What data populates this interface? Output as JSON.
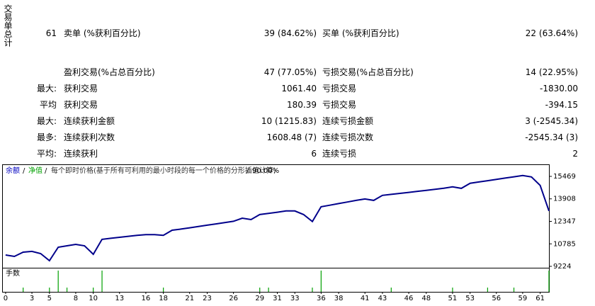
{
  "side_label": "交易单总计",
  "stats": {
    "rows": [
      {
        "prefix": "61",
        "left_label": "卖单 (%获利百分比)",
        "left_value": "39 (84.62%)",
        "right_label": "买单 (%获利百分比)",
        "right_value": "22 (63.64%)"
      },
      {
        "left_label": "盈利交易(%占总百分比)",
        "left_value": "47 (77.05%)",
        "right_label": "亏损交易(%占总百分比)",
        "right_value": "14 (22.95%)"
      },
      {
        "prefix": "最大:",
        "left_label": "获利交易",
        "left_value": "1061.40",
        "right_label": "亏损交易",
        "right_value": "-1830.00"
      },
      {
        "prefix": "平均",
        "left_label": "获利交易",
        "left_value": "180.39",
        "right_label": "亏损交易",
        "right_value": "-394.15"
      },
      {
        "prefix": "最大:",
        "left_label": "连续获利金额",
        "left_value": "10 (1215.83)",
        "right_label": "连续亏损金额",
        "right_value": "3 (-2545.34)"
      },
      {
        "prefix": "最多:",
        "left_label": "连续获利次数",
        "left_value": "1608.48 (7)",
        "right_label": "连续亏损次数",
        "right_value": "-2545.34 (3)"
      },
      {
        "prefix": "平均:",
        "left_label": "连续获利",
        "left_value": "6",
        "right_label": "连续亏损",
        "right_value": "2"
      }
    ]
  },
  "chart_data": {
    "type": "line",
    "header": {
      "balance": "余额",
      "equity": "净值",
      "separator": "/",
      "model": "每个即时价格(基于所有可利用的最小时段的每一个价格的分形插值计算)",
      "quality": "90.00%"
    },
    "x": [
      0,
      1,
      2,
      3,
      4,
      5,
      6,
      7,
      8,
      9,
      10,
      11,
      12,
      13,
      14,
      15,
      16,
      17,
      18,
      19,
      20,
      21,
      22,
      23,
      24,
      25,
      26,
      27,
      28,
      29,
      30,
      31,
      32,
      33,
      34,
      35,
      36,
      37,
      38,
      39,
      40,
      41,
      42,
      43,
      44,
      45,
      46,
      47,
      48,
      49,
      50,
      51,
      52,
      53,
      54,
      55,
      56,
      57,
      58,
      59,
      60,
      61,
      62
    ],
    "series": [
      {
        "name": "余额",
        "color": "#00008b",
        "values": [
          10010,
          9914,
          10210,
          10260,
          10110,
          9620,
          10554,
          10650,
          10750,
          10650,
          10060,
          11100,
          11170,
          11240,
          11310,
          11380,
          11420,
          11420,
          11380,
          11730,
          11810,
          11900,
          11990,
          12080,
          12170,
          12260,
          12350,
          12570,
          12470,
          12820,
          12900,
          12980,
          13070,
          13070,
          12820,
          12330,
          13360,
          13470,
          13580,
          13690,
          13800,
          13900,
          13800,
          14150,
          14220,
          14290,
          14360,
          14430,
          14500,
          14570,
          14650,
          14740,
          14640,
          14990,
          15080,
          15170,
          15260,
          15350,
          15440,
          15530,
          15430,
          14840,
          13070
        ]
      }
    ],
    "xlim": [
      -0.4,
      62
    ],
    "xticks": [
      0,
      3,
      5,
      8,
      10,
      13,
      16,
      18,
      21,
      23,
      26,
      29,
      31,
      33,
      36,
      38,
      41,
      43,
      46,
      48,
      51,
      53,
      56,
      59,
      61
    ],
    "ylim": [
      9126,
      16305
    ],
    "yticks": [
      9224,
      10785,
      12347,
      13908,
      15469
    ],
    "volume": {
      "label": "手数",
      "color": "#00a000",
      "x": [
        2,
        5,
        6,
        7,
        10,
        11,
        18,
        29,
        30,
        35,
        36,
        44,
        51,
        55,
        58,
        62
      ],
      "values": [
        1,
        1,
        5,
        1,
        1,
        5,
        1,
        1,
        1,
        1,
        5,
        1,
        1,
        1,
        1,
        5
      ]
    }
  }
}
